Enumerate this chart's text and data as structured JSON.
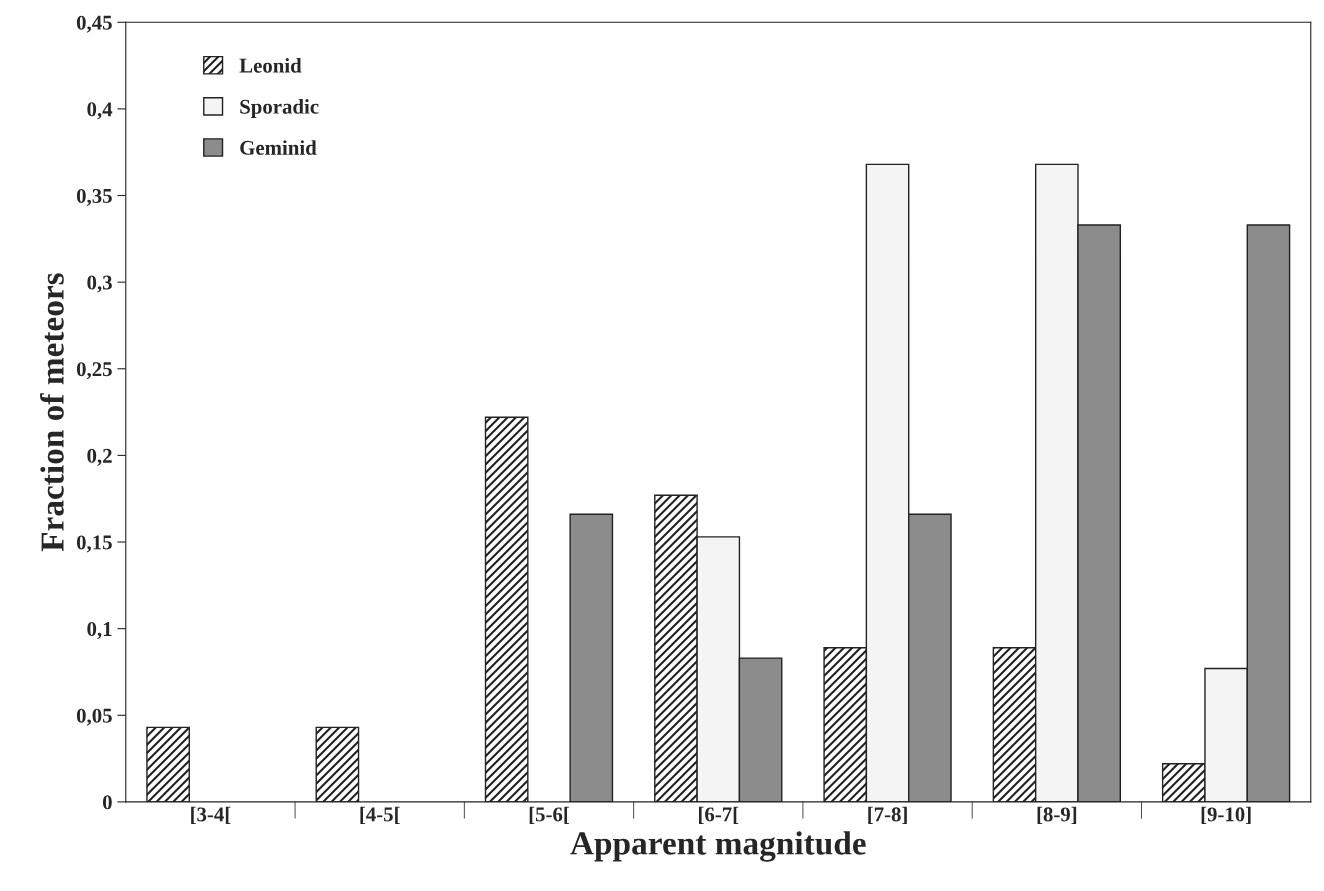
{
  "chart_data": {
    "type": "bar",
    "xlabel": "Apparent magnitude",
    "ylabel": "Fraction of meteors",
    "categories": [
      "[3-4[",
      "[4-5[",
      "[5-6[",
      "[6-7[",
      "[7-8]",
      "[8-9]",
      "[9-10]"
    ],
    "series": [
      {
        "name": "Leonid",
        "color": "#222222",
        "values": [
          0.043,
          0.043,
          0.222,
          0.177,
          0.089,
          0.089,
          0.022
        ]
      },
      {
        "name": "Sporadic",
        "color": "#f4f4f4",
        "values": [
          null,
          null,
          null,
          0.153,
          0.368,
          0.368,
          0.077
        ]
      },
      {
        "name": "Geminid",
        "color": "#8c8c8c",
        "values": [
          null,
          null,
          0.166,
          0.083,
          0.166,
          0.333,
          0.333
        ]
      }
    ],
    "ylim": [
      0,
      0.45
    ],
    "yticks": [
      0,
      {
        "value": 0.05,
        "label": "0,05"
      },
      {
        "value": 0.1,
        "label": "0,1"
      },
      {
        "value": 0.15,
        "label": "0,15"
      },
      {
        "value": 0.2,
        "label": "0,2"
      },
      {
        "value": 0.25,
        "label": "0,25"
      },
      {
        "value": 0.3,
        "label": "0,3"
      },
      {
        "value": 0.35,
        "label": "0,35"
      },
      {
        "value": 0.4,
        "label": "0,4"
      },
      {
        "value": 0.45,
        "label": "0,45"
      }
    ],
    "grid": false,
    "legend": "top left"
  }
}
